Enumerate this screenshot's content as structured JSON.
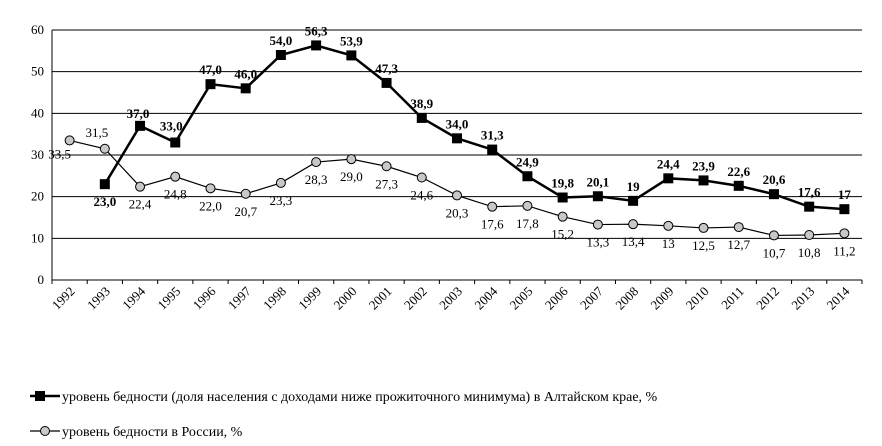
{
  "chart_data": {
    "type": "line",
    "title": "",
    "xlabel": "",
    "ylabel": "",
    "ylim": [
      0,
      60
    ],
    "yticks": [
      "0",
      "10",
      "20",
      "30",
      "40",
      "50",
      "60"
    ],
    "grid": "horizontal",
    "legend_position": "bottom",
    "x": [
      "1992",
      "1993",
      "1994",
      "1995",
      "1996",
      "1997",
      "1998",
      "1999",
      "2000",
      "2001",
      "2002",
      "2003",
      "2004",
      "2005",
      "2006",
      "2007",
      "2008",
      "2009",
      "2010",
      "2011",
      "2012",
      "2013",
      "2014"
    ],
    "series": [
      {
        "name": "уровень бедности (доля населения с доходами ниже прожиточного минимума) в Алтайском крае, %",
        "marker": "filled-square",
        "color": "#000000",
        "x": [
          "1993",
          "1994",
          "1995",
          "1996",
          "1997",
          "1998",
          "1999",
          "2000",
          "2001",
          "2002",
          "2003",
          "2004",
          "2005",
          "2006",
          "2007",
          "2008",
          "2009",
          "2010",
          "2011",
          "2012",
          "2013",
          "2014"
        ],
        "values": [
          23.0,
          37.0,
          33.0,
          47.0,
          46.0,
          54.0,
          56.3,
          53.9,
          47.3,
          38.9,
          34.0,
          31.3,
          24.9,
          19.8,
          20.1,
          19,
          24.4,
          23.9,
          22.6,
          20.6,
          17.6,
          17
        ],
        "labels": [
          "23,0",
          "37,0",
          "33,0",
          "47,0",
          "46,0",
          "54,0",
          "56,3",
          "53,9",
          "47,3",
          "38,9",
          "34,0",
          "31,3",
          "24,9",
          "19,8",
          "20,1",
          "19",
          "24,4",
          "23,9",
          "22,6",
          "20,6",
          "17,6",
          "17"
        ]
      },
      {
        "name": "уровень бедности в России, %",
        "marker": "open-circle",
        "color": "#000000",
        "x": [
          "1992",
          "1993",
          "1994",
          "1995",
          "1996",
          "1997",
          "1998",
          "1999",
          "2000",
          "2001",
          "2002",
          "2003",
          "2004",
          "2005",
          "2006",
          "2007",
          "2008",
          "2009",
          "2010",
          "2011",
          "2012",
          "2013",
          "2014"
        ],
        "values": [
          33.5,
          31.5,
          22.4,
          24.8,
          22.0,
          20.7,
          23.3,
          28.3,
          29.0,
          27.3,
          24.6,
          20.3,
          17.6,
          17.8,
          15.2,
          13.3,
          13.4,
          13,
          12.5,
          12.7,
          10.7,
          10.8,
          11.2
        ],
        "labels": [
          "33,5",
          "31,5",
          "22,4",
          "24,8",
          "22,0",
          "20,7",
          "23,3",
          "28,3",
          "29,0",
          "27,3",
          "24,6",
          "20,3",
          "17,6",
          "17,8",
          "15,2",
          "13,3",
          "13,4",
          "13",
          "12,5",
          "12,7",
          "10,7",
          "10,8",
          "11,2"
        ]
      }
    ]
  }
}
